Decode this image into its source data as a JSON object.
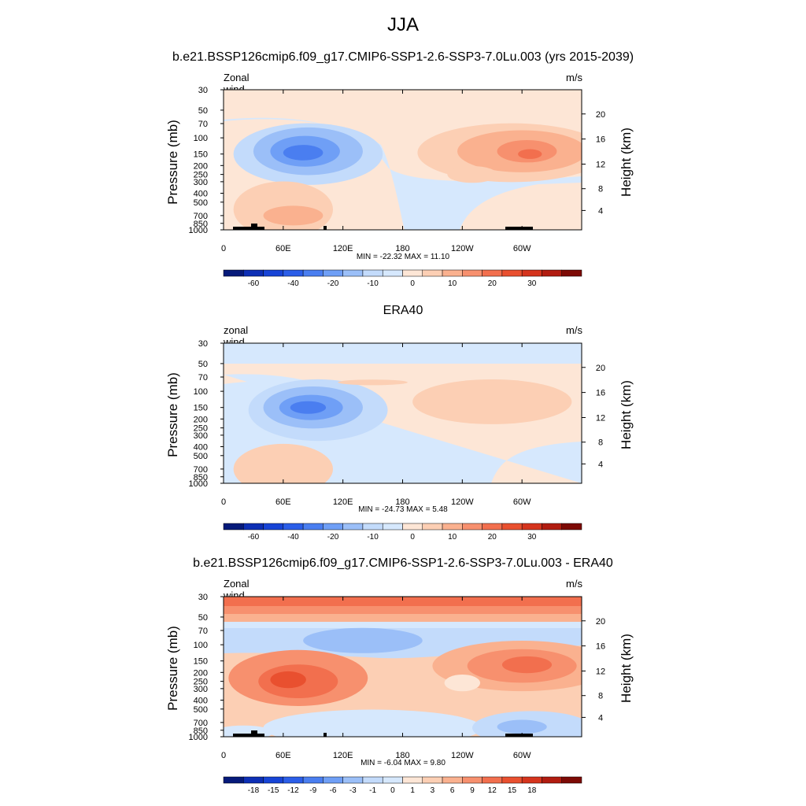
{
  "page": {
    "title": "JJA",
    "subtitle_top": "b.e21.BSSP126cmip6.f09_g17.CMIP6-SSP1-2.6-SSP3-7.0Lu.003 (yrs 2015-2039)",
    "subtitle_middle": "ERA40",
    "subtitle_bottom": "b.e21.BSSP126cmip6.f09_g17.CMIP6-SSP1-2.6-SSP3-7.0Lu.003 - ERA40"
  },
  "colors": {
    "neg": [
      "#061a7a",
      "#0d2fb5",
      "#1744d6",
      "#2b5ee8",
      "#4a7ef0",
      "#6f9ff6",
      "#9bbff8",
      "#c3dbfb",
      "#d6e8fd"
    ],
    "pos": [
      "#fde6d6",
      "#fccfb4",
      "#fab18f",
      "#f7906e",
      "#f26f4e",
      "#e9502f",
      "#d5341d",
      "#b11c10",
      "#7d0a05"
    ]
  },
  "chart_data": [
    {
      "type": "heatmap",
      "name": "model",
      "label_left": "Zonal wind",
      "label_right": "m/s",
      "ylabel": "Pressure (mb)",
      "ylabel_right": "Height (km)",
      "xticks": [
        "0",
        "60E",
        "120E",
        "180",
        "120W",
        "60W"
      ],
      "yticks": [
        "30",
        "50",
        "70",
        "100",
        "150",
        "200",
        "250",
        "300",
        "400",
        "500",
        "700",
        "850",
        "1000"
      ],
      "yticks_right": [
        "20",
        "16",
        "12",
        "8",
        "4"
      ],
      "minmax": "MIN = -22.32  MAX =  11.10",
      "colorbar_labels": [
        "-60",
        "-40",
        "-20",
        "-10",
        "0",
        "10",
        "20",
        "30"
      ],
      "features": {
        "background": "+ weak",
        "negative_jet_center": {
          "lon": 75,
          "pressure": 150,
          "value": -22.32
        },
        "positive_max_center": {
          "lon": 300,
          "pressure": 150,
          "value": 11.1
        }
      }
    },
    {
      "type": "heatmap",
      "name": "obs",
      "label_left": "zonal wind",
      "label_right": "m/s",
      "ylabel": "Pressure (mb)",
      "ylabel_right": "Height (km)",
      "xticks": [
        "0",
        "60E",
        "120E",
        "180",
        "120W",
        "60W"
      ],
      "yticks": [
        "30",
        "50",
        "70",
        "100",
        "150",
        "200",
        "250",
        "300",
        "400",
        "500",
        "700",
        "850",
        "1000"
      ],
      "yticks_right": [
        "20",
        "16",
        "12",
        "8",
        "4"
      ],
      "minmax": "MIN = -24.73  MAX =   5.48",
      "colorbar_labels": [
        "-60",
        "-40",
        "-20",
        "-10",
        "0",
        "10",
        "20",
        "30"
      ],
      "features": {
        "negative_jet_center": {
          "lon": 90,
          "pressure": 150,
          "value": -24.73
        },
        "positive_max_center": {
          "lon": 250,
          "pressure": 120,
          "value": 5.48
        }
      }
    },
    {
      "type": "heatmap",
      "name": "difference",
      "label_left": "Zonal wind",
      "label_right": "m/s",
      "ylabel": "Pressure (mb)",
      "ylabel_right": "Height (km)",
      "xticks": [
        "0",
        "60E",
        "120E",
        "180",
        "120W",
        "60W"
      ],
      "yticks": [
        "30",
        "50",
        "70",
        "100",
        "150",
        "200",
        "250",
        "300",
        "400",
        "500",
        "700",
        "850",
        "1000"
      ],
      "yticks_right": [
        "20",
        "16",
        "12",
        "8",
        "4"
      ],
      "minmax": "MIN =  -6.04  MAX =   9.80",
      "colorbar_labels": [
        "-18",
        "-15",
        "-12",
        "-9",
        "-6",
        "-3",
        "-1",
        "0",
        "1",
        "3",
        "6",
        "9",
        "12",
        "15",
        "18"
      ]
    }
  ]
}
